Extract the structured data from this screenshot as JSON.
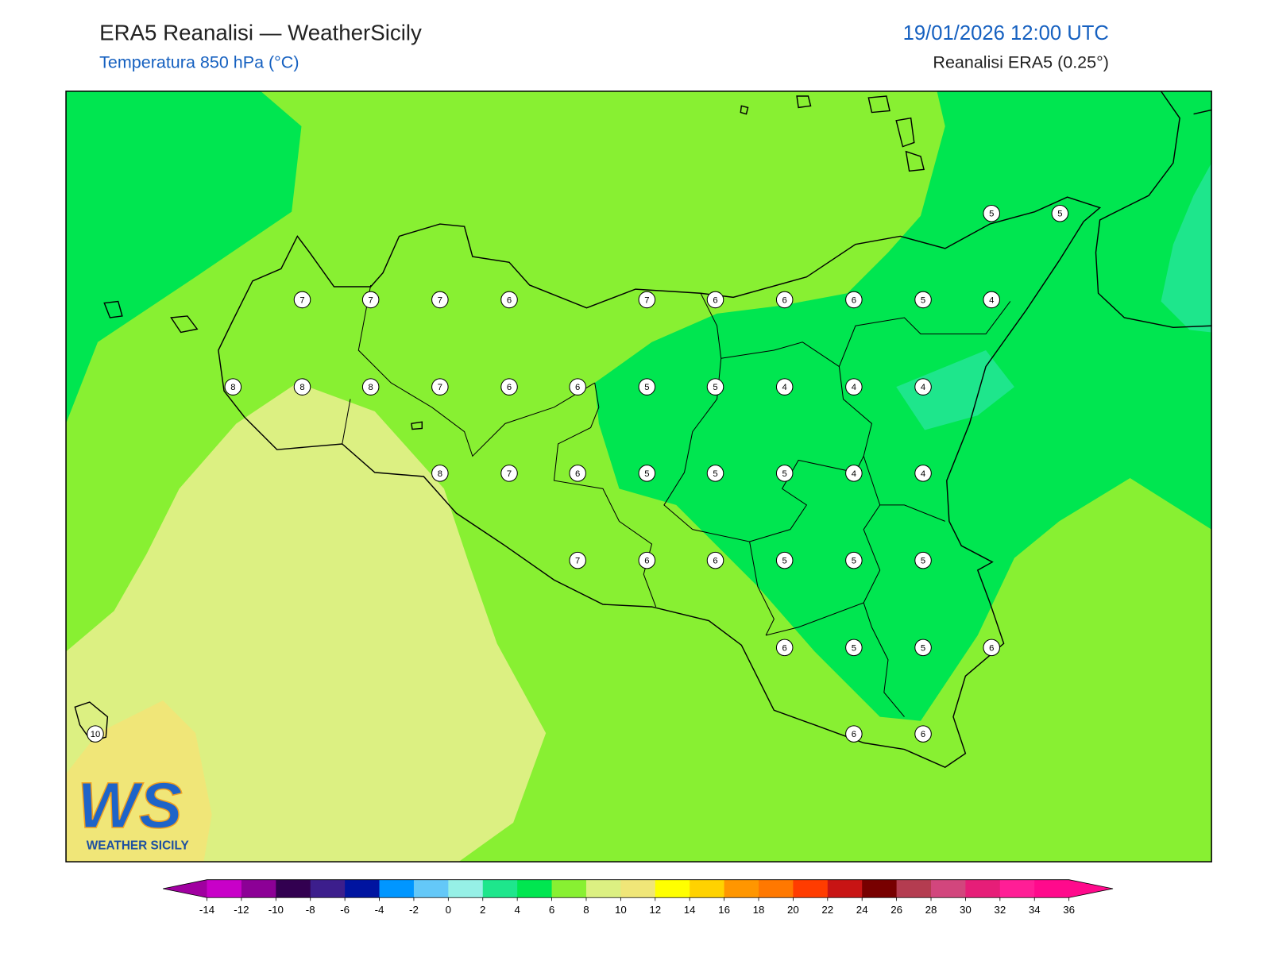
{
  "header": {
    "title": "ERA5 Reanalisi — WeatherSicily",
    "subtitle": "Temperatura 850 hPa (°C)",
    "datetime": "19/01/2026 12:00 UTC",
    "source": "Reanalisi ERA5 (0.25°)"
  },
  "stations": [
    5,
    5,
    7,
    7,
    7,
    6,
    7,
    6,
    6,
    6,
    5,
    4,
    8,
    8,
    8,
    7,
    6,
    6,
    5,
    5,
    4,
    4,
    4,
    8,
    7,
    6,
    5,
    5,
    5,
    4,
    4,
    7,
    6,
    6,
    5,
    5,
    5,
    6,
    5,
    5,
    6,
    10,
    6,
    6
  ],
  "logo": {
    "mark": "WS",
    "name": "WEATHER SICILY"
  },
  "colorbar": {
    "ticks": [
      -14,
      -12,
      -10,
      -8,
      -6,
      -4,
      -2,
      0,
      2,
      4,
      6,
      8,
      10,
      12,
      14,
      16,
      18,
      20,
      22,
      24,
      26,
      28,
      30,
      32,
      34,
      36
    ],
    "colors": [
      "#c800c8",
      "#8c0096",
      "#320050",
      "#3c1e8c",
      "#0014a0",
      "#0096ff",
      "#64c8f8",
      "#96f0e6",
      "#1ee68c",
      "#00e650",
      "#88f032",
      "#dcf082",
      "#f0e678",
      "#ffff00",
      "#ffd200",
      "#ff9600",
      "#ff7800",
      "#ff3c00",
      "#c81414",
      "#780000",
      "#b43c50",
      "#d2467d",
      "#e61e78",
      "#ff1e96",
      "#ff0a8c"
    ],
    "under": "#a000a0",
    "over": "#ff0a8c"
  }
}
